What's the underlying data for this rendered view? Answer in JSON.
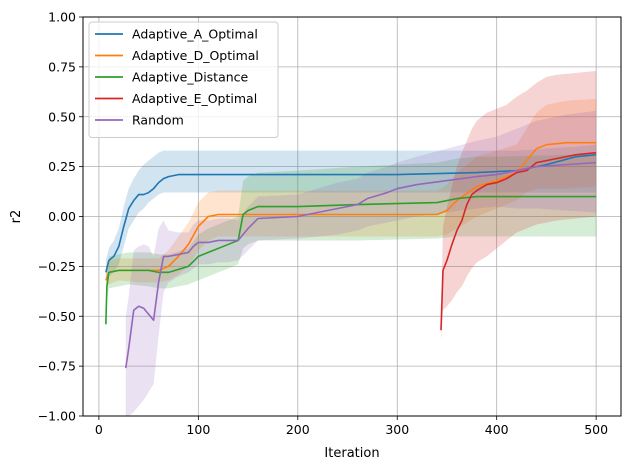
{
  "chart_data": {
    "type": "line",
    "title": "",
    "xlabel": "Iteration",
    "ylabel": "r2",
    "xlim": [
      -16,
      525
    ],
    "ylim": [
      -1.0,
      1.0
    ],
    "xticks": [
      0,
      100,
      200,
      300,
      400,
      500
    ],
    "yticks": [
      -1.0,
      -0.75,
      -0.5,
      -0.25,
      0.0,
      0.25,
      0.5,
      0.75,
      1.0
    ],
    "xtick_labels": [
      "0",
      "100",
      "200",
      "300",
      "400",
      "500"
    ],
    "ytick_labels": [
      "−1.00",
      "−0.75",
      "−0.50",
      "−0.25",
      "0.00",
      "0.25",
      "0.50",
      "0.75",
      "1.00"
    ],
    "grid": true,
    "legend_position": "top-left",
    "series": [
      {
        "name": "Adaptive_A_Optimal",
        "color": "#1f77b4",
        "x": [
          7,
          10,
          15,
          20,
          25,
          30,
          35,
          40,
          45,
          50,
          55,
          60,
          65,
          70,
          80,
          100,
          150,
          200,
          300,
          380,
          420,
          450,
          480,
          500
        ],
        "y": [
          -0.28,
          -0.22,
          -0.2,
          -0.15,
          -0.05,
          0.04,
          0.08,
          0.11,
          0.11,
          0.12,
          0.14,
          0.17,
          0.19,
          0.2,
          0.21,
          0.21,
          0.21,
          0.21,
          0.21,
          0.22,
          0.23,
          0.26,
          0.3,
          0.31
        ],
        "lower": [
          -0.33,
          -0.3,
          -0.28,
          -0.24,
          -0.15,
          -0.06,
          -0.02,
          0.02,
          0.04,
          0.07,
          0.09,
          0.11,
          0.12,
          0.12,
          0.12,
          0.12,
          0.12,
          0.12,
          0.12,
          0.12,
          0.12,
          0.12,
          0.12,
          0.12
        ],
        "upper": [
          -0.22,
          -0.16,
          -0.12,
          -0.06,
          0.05,
          0.14,
          0.19,
          0.23,
          0.26,
          0.28,
          0.3,
          0.32,
          0.33,
          0.33,
          0.33,
          0.33,
          0.33,
          0.33,
          0.33,
          0.33,
          0.33,
          0.34,
          0.35,
          0.36
        ]
      },
      {
        "name": "Adaptive_D_Optimal",
        "color": "#ff7f0e",
        "x": [
          7,
          10,
          20,
          40,
          60,
          70,
          80,
          90,
          100,
          110,
          120,
          200,
          340,
          350,
          360,
          380,
          400,
          420,
          430,
          440,
          450,
          470,
          500
        ],
        "y": [
          -0.32,
          -0.28,
          -0.27,
          -0.27,
          -0.27,
          -0.25,
          -0.2,
          -0.14,
          -0.05,
          0.0,
          0.01,
          0.01,
          0.01,
          0.03,
          0.08,
          0.15,
          0.18,
          0.22,
          0.28,
          0.34,
          0.36,
          0.37,
          0.37
        ],
        "lower": [
          -0.36,
          -0.34,
          -0.32,
          -0.33,
          -0.33,
          -0.32,
          -0.29,
          -0.25,
          -0.17,
          -0.12,
          -0.1,
          -0.1,
          -0.1,
          -0.09,
          -0.06,
          0.0,
          0.04,
          0.08,
          0.12,
          0.14,
          0.14,
          0.14,
          0.15
        ],
        "upper": [
          -0.28,
          -0.22,
          -0.21,
          -0.21,
          -0.21,
          -0.17,
          -0.1,
          -0.03,
          0.07,
          0.12,
          0.13,
          0.13,
          0.13,
          0.16,
          0.22,
          0.3,
          0.33,
          0.36,
          0.44,
          0.52,
          0.56,
          0.58,
          0.59
        ]
      },
      {
        "name": "Adaptive_Distance",
        "color": "#2ca02c",
        "x": [
          7,
          8,
          10,
          20,
          30,
          50,
          60,
          70,
          90,
          100,
          110,
          130,
          140,
          145,
          150,
          160,
          200,
          260,
          340,
          360,
          380,
          400,
          480,
          500
        ],
        "y": [
          -0.54,
          -0.35,
          -0.28,
          -0.27,
          -0.27,
          -0.27,
          -0.28,
          -0.28,
          -0.25,
          -0.2,
          -0.18,
          -0.14,
          -0.12,
          0.01,
          0.03,
          0.05,
          0.05,
          0.06,
          0.07,
          0.09,
          0.1,
          0.1,
          0.1,
          0.1
        ],
        "lower": [
          -0.6,
          -0.42,
          -0.36,
          -0.35,
          -0.34,
          -0.35,
          -0.36,
          -0.36,
          -0.34,
          -0.32,
          -0.3,
          -0.26,
          -0.24,
          -0.16,
          -0.14,
          -0.12,
          -0.12,
          -0.12,
          -0.11,
          -0.1,
          -0.1,
          -0.1,
          -0.1,
          -0.1
        ],
        "upper": [
          -0.48,
          -0.28,
          -0.2,
          -0.19,
          -0.18,
          -0.18,
          -0.19,
          -0.19,
          -0.16,
          -0.09,
          -0.06,
          -0.02,
          0.0,
          0.18,
          0.2,
          0.22,
          0.23,
          0.25,
          0.27,
          0.29,
          0.3,
          0.3,
          0.31,
          0.31
        ]
      },
      {
        "name": "Adaptive_E_Optimal",
        "color": "#d62728",
        "x": [
          344,
          346,
          350,
          355,
          360,
          365,
          370,
          375,
          380,
          390,
          400,
          410,
          420,
          430,
          440,
          450,
          460,
          480,
          500
        ],
        "y": [
          -0.57,
          -0.27,
          -0.22,
          -0.14,
          -0.07,
          -0.02,
          0.06,
          0.11,
          0.13,
          0.16,
          0.17,
          0.19,
          0.22,
          0.23,
          0.27,
          0.28,
          0.29,
          0.31,
          0.32
        ],
        "lower": [
          -0.62,
          -0.47,
          -0.45,
          -0.42,
          -0.38,
          -0.35,
          -0.3,
          -0.26,
          -0.23,
          -0.2,
          -0.16,
          -0.12,
          -0.08,
          -0.06,
          -0.04,
          -0.03,
          -0.02,
          -0.01,
          0.0
        ],
        "upper": [
          -0.5,
          -0.05,
          0.05,
          0.15,
          0.25,
          0.32,
          0.38,
          0.44,
          0.48,
          0.52,
          0.54,
          0.56,
          0.6,
          0.63,
          0.67,
          0.7,
          0.71,
          0.72,
          0.73
        ]
      },
      {
        "name": "Random",
        "color": "#9467bd",
        "x": [
          27,
          30,
          35,
          40,
          45,
          50,
          55,
          60,
          65,
          70,
          80,
          90,
          95,
          100,
          110,
          120,
          130,
          140,
          150,
          160,
          200,
          240,
          260,
          270,
          290,
          300,
          320,
          350,
          380,
          400,
          420,
          440,
          470,
          500
        ],
        "y": [
          -0.76,
          -0.66,
          -0.47,
          -0.45,
          -0.46,
          -0.49,
          -0.52,
          -0.33,
          -0.2,
          -0.2,
          -0.19,
          -0.18,
          -0.15,
          -0.13,
          -0.13,
          -0.12,
          -0.12,
          -0.12,
          -0.06,
          -0.01,
          0.0,
          0.04,
          0.06,
          0.09,
          0.12,
          0.14,
          0.16,
          0.18,
          0.2,
          0.21,
          0.23,
          0.25,
          0.26,
          0.27
        ],
        "lower": [
          -1.0,
          -1.0,
          -0.98,
          -0.95,
          -0.92,
          -0.88,
          -0.84,
          -0.6,
          -0.38,
          -0.33,
          -0.3,
          -0.28,
          -0.26,
          -0.24,
          -0.24,
          -0.23,
          -0.23,
          -0.22,
          -0.17,
          -0.12,
          -0.11,
          -0.09,
          -0.07,
          -0.05,
          -0.03,
          -0.02,
          0.0,
          0.02,
          0.04,
          0.05,
          0.04,
          0.04,
          0.03,
          0.02
        ],
        "upper": [
          -0.5,
          -0.4,
          -0.17,
          -0.15,
          -0.14,
          -0.15,
          -0.2,
          -0.06,
          -0.02,
          -0.07,
          -0.08,
          -0.08,
          -0.04,
          -0.02,
          -0.02,
          -0.01,
          -0.01,
          -0.02,
          0.05,
          0.1,
          0.11,
          0.17,
          0.19,
          0.22,
          0.25,
          0.27,
          0.3,
          0.34,
          0.38,
          0.4,
          0.44,
          0.48,
          0.51,
          0.53
        ]
      }
    ]
  }
}
